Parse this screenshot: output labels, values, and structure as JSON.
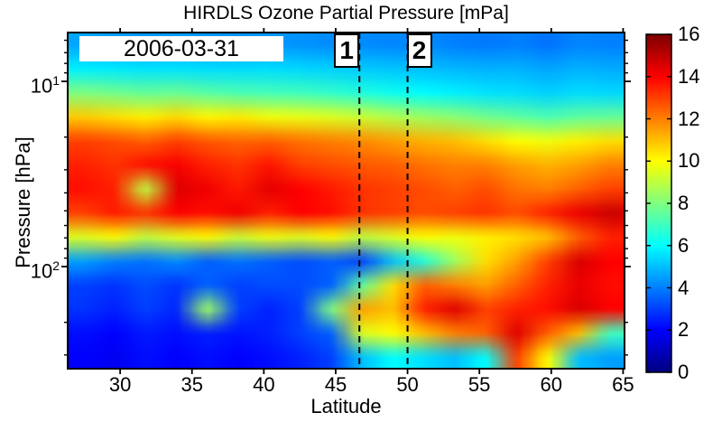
{
  "chart_data": {
    "type": "heatmap",
    "title": "HIRDLS Ozone Partial Pressure [mPa]",
    "xlabel": "Latitude",
    "ylabel": "Pressure [hPa]",
    "date_label": "2006-03-31",
    "colormap": "jet",
    "value_range": [
      0,
      16
    ],
    "colorbar_ticks": [
      0,
      2,
      4,
      6,
      8,
      10,
      12,
      14,
      16
    ],
    "x_ticks": [
      30,
      35,
      40,
      45,
      50,
      55,
      60,
      65
    ],
    "x_range": [
      26.35,
      65.1
    ],
    "y_scale": "log",
    "y_range_hPa": [
      5.45,
      355.8
    ],
    "y_ticks": [
      {
        "value": 10,
        "exp": 1
      },
      {
        "value": 100,
        "exp": 2
      }
    ],
    "y_minor_ticks": [
      6,
      7,
      8,
      9,
      20,
      30,
      40,
      50,
      60,
      70,
      80,
      90,
      200,
      300
    ],
    "markers": [
      {
        "label": "1",
        "latitude": 46.65,
        "box_side": "left"
      },
      {
        "label": "2",
        "latitude": 50.0,
        "box_side": "right"
      }
    ],
    "grid": {
      "latitudes": [
        26.5,
        28.8,
        31.1,
        33.4,
        35.7,
        38.0,
        40.3,
        42.5,
        44.8,
        47.1,
        49.4,
        51.7,
        54.0,
        56.3,
        58.6,
        60.9,
        63.2,
        65.1
      ],
      "pressures_hPa": [
        5.5,
        7.5,
        10.4,
        14.4,
        19.8,
        27.3,
        37.7,
        52.0,
        71.7,
        98.9,
        136.4,
        188.1,
        259.4,
        355.8
      ],
      "values_mPa": [
        [
          4.6,
          4.5,
          4.4,
          4.5,
          4.4,
          4.3,
          4.4,
          4.3,
          4.2,
          4.2,
          4.1,
          4.2,
          4.0,
          3.9,
          4.0,
          3.8,
          4.1,
          4.0
        ],
        [
          5.8,
          5.7,
          5.6,
          5.6,
          5.5,
          5.5,
          5.5,
          5.4,
          5.3,
          5.2,
          5.1,
          5.0,
          4.9,
          4.8,
          4.8,
          4.6,
          4.8,
          4.7
        ],
        [
          8.0,
          7.8,
          7.6,
          7.7,
          7.4,
          7.2,
          7.1,
          7.0,
          6.8,
          6.5,
          6.2,
          6.0,
          5.8,
          5.6,
          5.5,
          5.3,
          5.5,
          5.4
        ],
        [
          10.8,
          10.5,
          10.2,
          10.6,
          10.1,
          10.3,
          9.8,
          9.7,
          9.5,
          9.2,
          8.8,
          8.5,
          8.2,
          7.8,
          7.5,
          7.2,
          7.5,
          7.6
        ],
        [
          13.0,
          12.8,
          12.5,
          13.0,
          12.6,
          12.4,
          12.5,
          12.2,
          12.0,
          11.8,
          11.5,
          11.2,
          11.0,
          10.5,
          10.0,
          9.8,
          10.2,
          10.5
        ],
        [
          13.5,
          13.2,
          13.8,
          14.1,
          13.5,
          13.2,
          13.7,
          13.0,
          12.8,
          12.6,
          12.5,
          12.2,
          12.0,
          12.0,
          11.5,
          11.2,
          11.5,
          12.0
        ],
        [
          13.8,
          13.5,
          9.0,
          14.5,
          14.2,
          13.6,
          14.4,
          14.0,
          13.6,
          13.2,
          13.0,
          12.8,
          12.5,
          12.8,
          12.2,
          12.0,
          12.5,
          13.0
        ],
        [
          13.0,
          13.6,
          13.2,
          14.0,
          13.8,
          14.2,
          13.5,
          14.0,
          13.8,
          13.2,
          13.0,
          12.8,
          13.0,
          13.2,
          12.8,
          13.5,
          14.3,
          14.8
        ],
        [
          9.5,
          10.0,
          9.0,
          9.6,
          10.0,
          9.2,
          9.8,
          9.5,
          10.0,
          9.0,
          9.5,
          10.0,
          9.8,
          10.2,
          10.5,
          11.0,
          12.5,
          13.5
        ],
        [
          4.5,
          4.0,
          3.8,
          4.2,
          3.5,
          3.8,
          3.5,
          3.2,
          3.5,
          3.0,
          5.0,
          6.5,
          8.5,
          10.5,
          11.5,
          13.0,
          14.6,
          14.0
        ],
        [
          3.0,
          2.8,
          3.2,
          2.8,
          3.5,
          3.0,
          3.2,
          3.2,
          3.5,
          7.5,
          10.5,
          12.5,
          12.0,
          11.5,
          12.5,
          13.5,
          14.3,
          13.8
        ],
        [
          2.8,
          2.5,
          3.0,
          2.6,
          8.5,
          3.0,
          2.5,
          3.0,
          8.0,
          11.5,
          11.0,
          13.5,
          14.5,
          13.0,
          13.5,
          13.8,
          14.6,
          14.0
        ],
        [
          2.2,
          2.0,
          2.4,
          2.2,
          2.5,
          2.3,
          2.5,
          3.0,
          3.5,
          9.5,
          10.0,
          11.0,
          12.0,
          12.5,
          14.5,
          12.5,
          11.0,
          7.0
        ],
        [
          2.0,
          1.8,
          2.2,
          2.0,
          2.2,
          2.0,
          2.2,
          2.5,
          3.0,
          5.0,
          6.0,
          5.5,
          5.0,
          6.0,
          13.0,
          10.0,
          5.0,
          4.5
        ]
      ]
    }
  }
}
